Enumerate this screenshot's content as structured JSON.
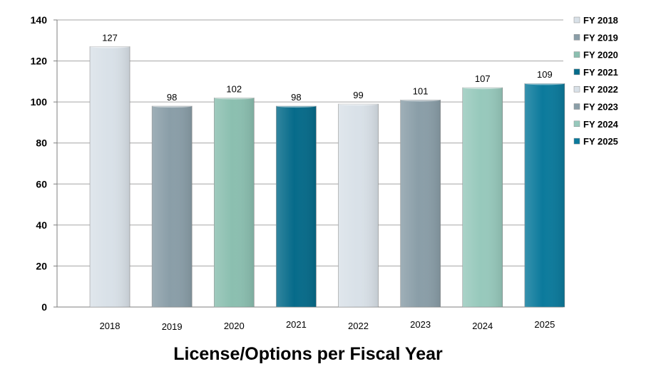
{
  "chart_data": {
    "type": "bar",
    "title": "License/Options per Fiscal Year",
    "xlabel": "",
    "ylabel": "",
    "categories": [
      "2018",
      "2019",
      "2020",
      "2021",
      "2022",
      "2023",
      "2024",
      "2025"
    ],
    "values": [
      127,
      98,
      102,
      98,
      99,
      101,
      107,
      109
    ],
    "ylim": [
      0,
      140
    ],
    "yticks": [
      0,
      20,
      40,
      60,
      80,
      100,
      120,
      140
    ],
    "grid": true,
    "legend_position": "right",
    "legend": [
      "FY 2018",
      "FY 2019",
      "FY 2020",
      "FY 2021",
      "FY 2022",
      "FY 2023",
      "FY 2024",
      "FY 2025"
    ],
    "colors": [
      "#d9e1e8",
      "#8a9ea8",
      "#8bbfb0",
      "#066b8a",
      "#d9e1e8",
      "#8a9ea8",
      "#97c9bc",
      "#0b7a9c"
    ]
  }
}
